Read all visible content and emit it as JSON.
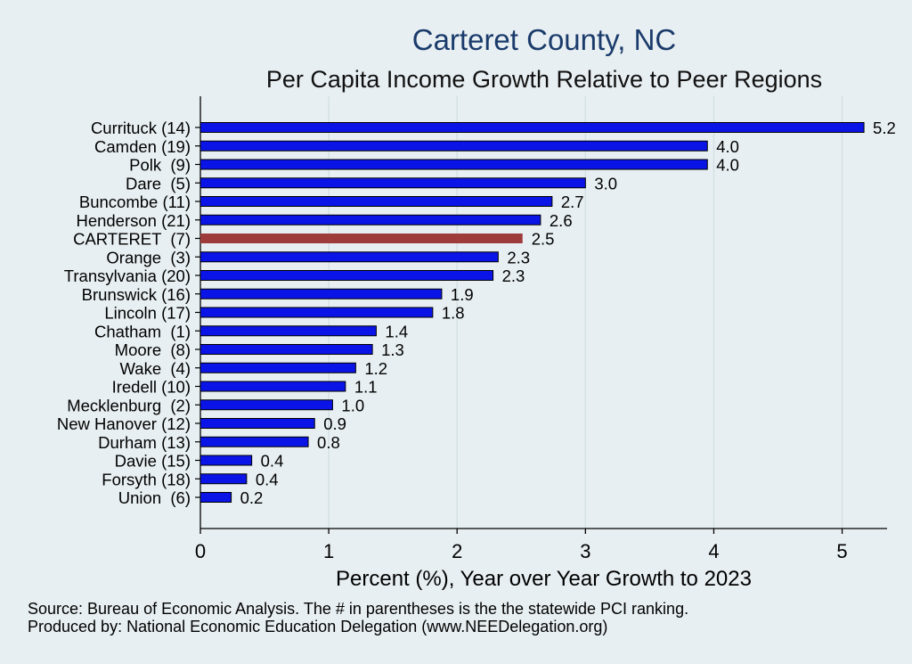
{
  "chart_data": {
    "type": "bar",
    "orientation": "horizontal",
    "title": "Carteret County, NC",
    "subtitle": "Per Capita Income Growth Relative to Peer Regions",
    "xlabel": "Percent (%), Year over Year Growth to 2023",
    "ylabel": "",
    "xlim": [
      0,
      5.35
    ],
    "xticks": [
      0,
      1,
      2,
      3,
      4,
      5
    ],
    "grid": "vertical",
    "categories": [
      "Currituck (14)",
      "Camden (19)",
      "Polk  (9)",
      "Dare  (5)",
      "Buncombe (11)",
      "Henderson (21)",
      "CARTERET  (7)",
      "Orange  (3)",
      "Transylvania (20)",
      "Brunswick (16)",
      "Lincoln (17)",
      "Chatham  (1)",
      "Moore  (8)",
      "Wake  (4)",
      "Iredell (10)",
      "Mecklenburg  (2)",
      "New Hanover (12)",
      "Durham (13)",
      "Davie (15)",
      "Forsyth (18)",
      "Union  (6)"
    ],
    "values": [
      5.17,
      3.95,
      3.95,
      3.0,
      2.74,
      2.65,
      2.51,
      2.32,
      2.28,
      1.88,
      1.81,
      1.37,
      1.34,
      1.21,
      1.13,
      1.03,
      0.89,
      0.84,
      0.4,
      0.36,
      0.24
    ],
    "data_labels": [
      "5.2",
      "4.0",
      "4.0",
      "3.0",
      "2.7",
      "2.6",
      "2.5",
      "2.3",
      "2.3",
      "1.9",
      "1.8",
      "1.4",
      "1.3",
      "1.2",
      "1.1",
      "1.0",
      "0.9",
      "0.8",
      "0.4",
      "0.4",
      "0.2"
    ],
    "highlight_index": 6,
    "colors": {
      "bar": "#0a14e6",
      "highlight": "#9e3b3b",
      "bar_edge": "#000000",
      "grid": "#d4e1e6",
      "background": "#e8eff2"
    }
  },
  "footnotes": {
    "source": "Source: Bureau of Economic Analysis. The # in parentheses is the the statewide PCI ranking.",
    "produced_by": "Produced by: National Economic Education Delegation (www.NEEDelegation.org)"
  }
}
